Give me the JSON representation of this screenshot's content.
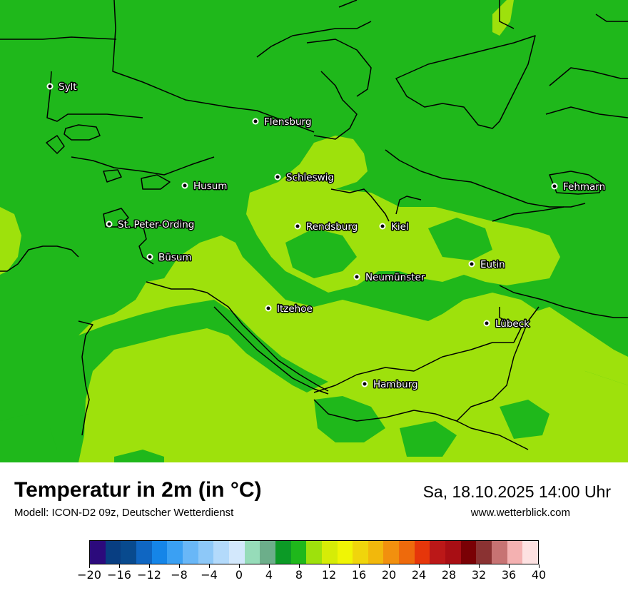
{
  "header": {
    "title": "Temperatur in 2m (in °C)",
    "model": "Modell: ICON-D2 09z, Deutscher Wetterdienst",
    "datetime": "Sa, 18.10.2025 14:00 Uhr",
    "website": "www.wetterblick.com"
  },
  "map": {
    "region": "Schleswig-Holstein",
    "colors": {
      "sea": "#1fb81b",
      "land_8_12": "#1fb81b",
      "land_12_16": "#9ee10c",
      "cold_10": "#0ea11e"
    },
    "cities": [
      {
        "name": "Sylt"
      },
      {
        "name": "Flensburg"
      },
      {
        "name": "Schleswig"
      },
      {
        "name": "Husum"
      },
      {
        "name": "Fehmarn"
      },
      {
        "name": "St. Peter-Ording"
      },
      {
        "name": "Rendsburg"
      },
      {
        "name": "Kiel"
      },
      {
        "name": "Büsum"
      },
      {
        "name": "Eutin"
      },
      {
        "name": "Neumünster"
      },
      {
        "name": "Itzehoe"
      },
      {
        "name": "Lübeck"
      },
      {
        "name": "Hamburg"
      }
    ]
  },
  "legend": {
    "colors": [
      "#2c0a7c",
      "#083e82",
      "#084a8e",
      "#0f66c2",
      "#1585e8",
      "#3aa0f3",
      "#69b7f7",
      "#8dc8f8",
      "#b3dafb",
      "#d3e8fc",
      "#96dcb9",
      "#6cae8a",
      "#0c9a26",
      "#1fb81b",
      "#9ee10c",
      "#d6ec07",
      "#f0f505",
      "#f0d50c",
      "#f2b80c",
      "#f2900e",
      "#ee6a0c",
      "#e6360a",
      "#bb1818",
      "#a80e14",
      "#7a0105",
      "#8a3232",
      "#c77373",
      "#f4b1b1",
      "#fde1e1"
    ],
    "ticks": [
      "−20",
      "−16",
      "−12",
      "−8",
      "−4",
      "0",
      "4",
      "8",
      "12",
      "16",
      "20",
      "24",
      "28",
      "32",
      "36",
      "40"
    ]
  }
}
